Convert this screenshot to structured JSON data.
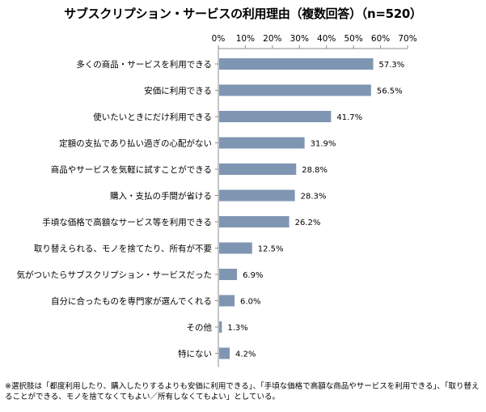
{
  "chart_data": {
    "type": "bar",
    "orientation": "horizontal",
    "title": "サブスクリプション・サービスの利用理由（複数回答）（n=520）",
    "categories": [
      "多くの商品・サービスを利用できる",
      "安価に利用できる",
      "使いたいときにだけ利用できる",
      "定額の支払であり払い過ぎの心配がない",
      "商品やサービスを気軽に試すことができる",
      "購入・支払の手間が省ける",
      "手頃な価格で高額なサービス等を利用できる",
      "取り替えられる、モノを捨てたり、所有が不要",
      "気がついたらサブスクリプション・サービスだった",
      "自分に合ったものを専門家が選んでくれる",
      "その他",
      "特にない"
    ],
    "values": [
      57.3,
      56.5,
      41.7,
      31.9,
      28.8,
      28.3,
      26.2,
      12.5,
      6.9,
      6.0,
      1.3,
      4.2
    ],
    "value_labels": [
      "57.3%",
      "56.5%",
      "41.7%",
      "31.9%",
      "28.8%",
      "28.3%",
      "26.2%",
      "12.5%",
      "6.9%",
      "6.0%",
      "1.3%",
      "4.2%"
    ],
    "xlim": [
      0,
      70
    ],
    "ticks": [
      0,
      10,
      20,
      30,
      40,
      50,
      60,
      70
    ],
    "tick_labels": [
      "0%",
      "10%",
      "20%",
      "30%",
      "40%",
      "50%",
      "60%",
      "70%"
    ],
    "axis_position": "top",
    "grid": false,
    "bar_color": "#7f96b3"
  },
  "footnote": "※選択肢は「都度利用したり、購入したりするよりも安価に利用できる」、「手頃な価格で高額な商品やサービスを利用できる」、「取り替えることができる、モノを捨てなくてもよい／所有しなくてもよい」としている。"
}
